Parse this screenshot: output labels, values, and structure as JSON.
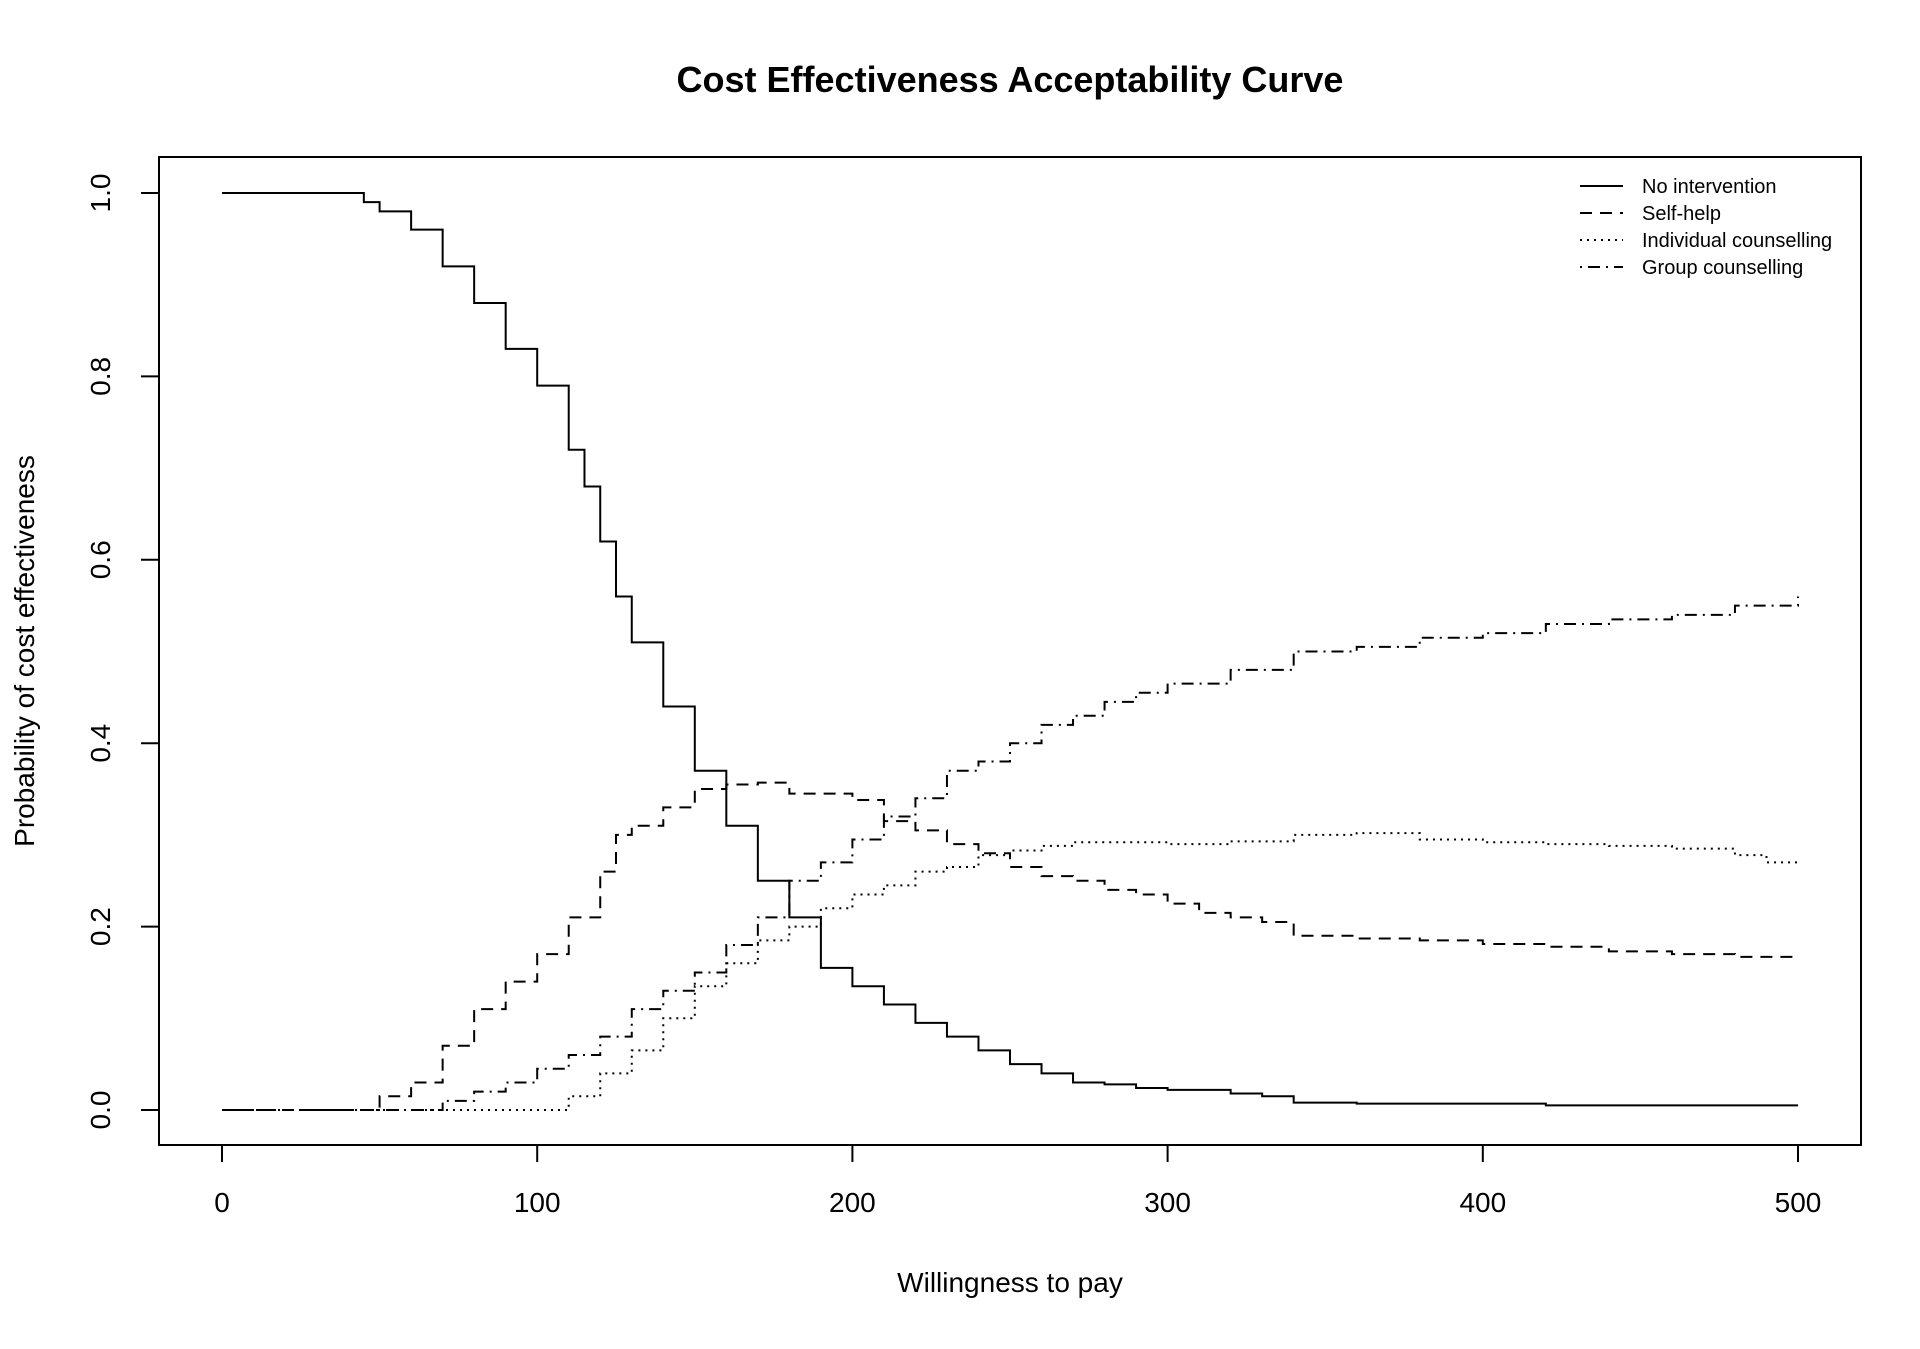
{
  "chart_data": {
    "type": "line",
    "title": "Cost Effectiveness Acceptability Curve",
    "xlabel": "Willingness to pay",
    "ylabel": "Probability of cost effectiveness",
    "xlim": [
      0,
      500
    ],
    "ylim": [
      0,
      1
    ],
    "xticks": [
      "0",
      "100",
      "200",
      "300",
      "400",
      "500"
    ],
    "yticks": [
      "0.0",
      "0.2",
      "0.4",
      "0.6",
      "0.8",
      "1.0"
    ],
    "grid": false,
    "legend_position": "top-right",
    "series": [
      {
        "name": "No intervention",
        "style": "solid",
        "x": [
          0,
          40,
          45,
          50,
          60,
          70,
          80,
          90,
          100,
          110,
          115,
          120,
          125,
          130,
          140,
          150,
          160,
          170,
          180,
          190,
          200,
          210,
          220,
          230,
          240,
          250,
          260,
          270,
          280,
          290,
          300,
          320,
          330,
          340,
          360,
          400,
          420,
          500
        ],
        "y": [
          1,
          1,
          0.99,
          0.98,
          0.96,
          0.92,
          0.88,
          0.83,
          0.79,
          0.72,
          0.68,
          0.62,
          0.56,
          0.51,
          0.44,
          0.37,
          0.31,
          0.25,
          0.21,
          0.155,
          0.135,
          0.115,
          0.095,
          0.08,
          0.065,
          0.05,
          0.04,
          0.03,
          0.028,
          0.024,
          0.022,
          0.018,
          0.015,
          0.008,
          0.007,
          0.007,
          0.005,
          0.005
        ]
      },
      {
        "name": "Self-help",
        "style": "dashed",
        "x": [
          0,
          40,
          50,
          60,
          70,
          80,
          90,
          100,
          110,
          120,
          125,
          130,
          140,
          150,
          160,
          170,
          180,
          190,
          200,
          210,
          220,
          230,
          240,
          250,
          260,
          270,
          280,
          290,
          300,
          310,
          320,
          330,
          340,
          360,
          380,
          400,
          420,
          440,
          460,
          480,
          500
        ],
        "y": [
          0,
          0,
          0.015,
          0.03,
          0.07,
          0.11,
          0.14,
          0.17,
          0.21,
          0.26,
          0.3,
          0.31,
          0.33,
          0.35,
          0.355,
          0.357,
          0.345,
          0.345,
          0.338,
          0.315,
          0.305,
          0.29,
          0.28,
          0.265,
          0.255,
          0.25,
          0.24,
          0.235,
          0.225,
          0.215,
          0.21,
          0.205,
          0.19,
          0.187,
          0.185,
          0.181,
          0.178,
          0.173,
          0.17,
          0.167,
          0.167
        ]
      },
      {
        "name": "Individual counselling",
        "style": "dotted",
        "x": [
          0,
          105,
          110,
          120,
          130,
          140,
          150,
          160,
          170,
          180,
          190,
          200,
          210,
          220,
          230,
          240,
          250,
          260,
          270,
          280,
          300,
          320,
          340,
          360,
          380,
          400,
          420,
          440,
          460,
          480,
          490,
          500
        ],
        "y": [
          0,
          0,
          0.015,
          0.04,
          0.065,
          0.1,
          0.135,
          0.16,
          0.185,
          0.2,
          0.22,
          0.235,
          0.245,
          0.26,
          0.265,
          0.278,
          0.283,
          0.288,
          0.292,
          0.292,
          0.29,
          0.293,
          0.3,
          0.302,
          0.295,
          0.292,
          0.29,
          0.288,
          0.285,
          0.278,
          0.27,
          0.27
        ]
      },
      {
        "name": "Group counselling",
        "style": "dotdash",
        "x": [
          0,
          60,
          70,
          80,
          90,
          100,
          110,
          120,
          130,
          140,
          150,
          160,
          170,
          180,
          190,
          200,
          210,
          220,
          230,
          240,
          250,
          260,
          270,
          280,
          290,
          300,
          320,
          340,
          360,
          380,
          400,
          420,
          440,
          460,
          480,
          500
        ],
        "y": [
          0,
          0,
          0.01,
          0.02,
          0.03,
          0.045,
          0.06,
          0.08,
          0.11,
          0.13,
          0.15,
          0.18,
          0.21,
          0.25,
          0.27,
          0.295,
          0.32,
          0.34,
          0.37,
          0.38,
          0.4,
          0.42,
          0.43,
          0.445,
          0.455,
          0.465,
          0.48,
          0.5,
          0.505,
          0.515,
          0.52,
          0.53,
          0.535,
          0.54,
          0.55,
          0.56
        ]
      }
    ]
  }
}
